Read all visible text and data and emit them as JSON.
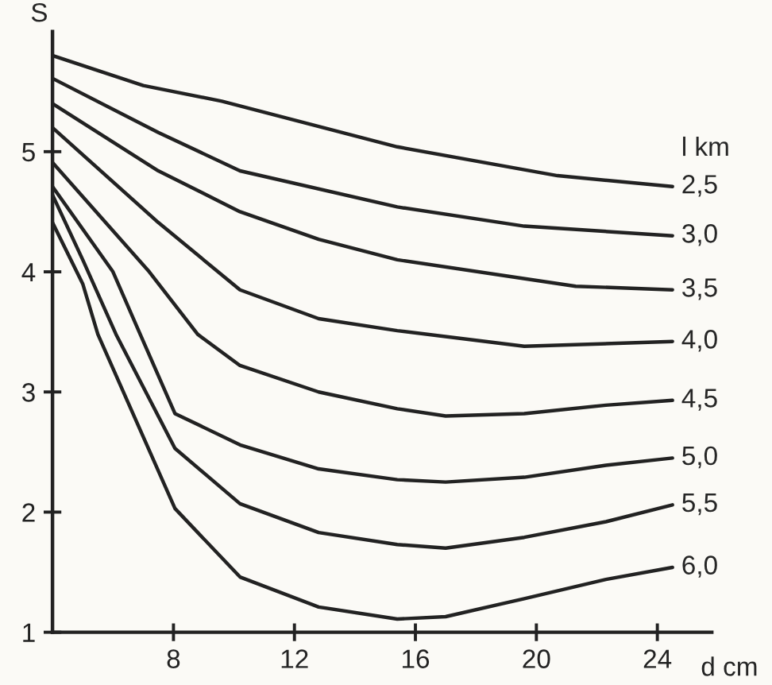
{
  "chart_data": {
    "type": "line",
    "xlabel": "d cm",
    "ylabel": "S",
    "legend_title": "l km",
    "xlim": [
      4,
      25.8
    ],
    "ylim": [
      1,
      6
    ],
    "xticks": [
      8,
      12,
      16,
      20,
      24
    ],
    "yticks": [
      1,
      2,
      3,
      4,
      5
    ],
    "grid": false,
    "legend": false,
    "marker": "none",
    "line_style": "solid",
    "series": [
      {
        "name": "2,5",
        "color": "#222222",
        "x": [
          4,
          7,
          9.6,
          15.4,
          20.7,
          24.5
        ],
        "values": [
          5.8,
          5.55,
          5.42,
          5.04,
          4.8,
          4.71
        ]
      },
      {
        "name": "3,0",
        "color": "#222222",
        "x": [
          4,
          7.5,
          10.2,
          15.4,
          19.6,
          24.5
        ],
        "values": [
          5.61,
          5.16,
          4.84,
          4.54,
          4.38,
          4.3
        ]
      },
      {
        "name": "3,5",
        "color": "#222222",
        "x": [
          4,
          7.5,
          10.2,
          12.8,
          15.4,
          21.3,
          24.5
        ],
        "values": [
          5.4,
          4.84,
          4.5,
          4.27,
          4.1,
          3.88,
          3.85
        ]
      },
      {
        "name": "4,0",
        "color": "#222222",
        "x": [
          4,
          7.5,
          10.2,
          12.8,
          15.4,
          19.6,
          24.5
        ],
        "values": [
          5.2,
          4.41,
          3.85,
          3.61,
          3.51,
          3.38,
          3.42
        ]
      },
      {
        "name": "4,5",
        "color": "#222222",
        "x": [
          4,
          7.2,
          8.8,
          10.2,
          12.8,
          15.4,
          17,
          19.6,
          22.3,
          24.5
        ],
        "values": [
          4.91,
          4.0,
          3.48,
          3.22,
          3.0,
          2.86,
          2.8,
          2.82,
          2.89,
          2.93
        ]
      },
      {
        "name": "5,0",
        "color": "#222222",
        "x": [
          4,
          6,
          6.9,
          8.05,
          10.2,
          12.8,
          15.4,
          17,
          19.6,
          22.3,
          24.5
        ],
        "values": [
          4.71,
          4.0,
          3.48,
          2.82,
          2.56,
          2.36,
          2.27,
          2.25,
          2.29,
          2.39,
          2.45
        ]
      },
      {
        "name": "5,5",
        "color": "#222222",
        "x": [
          4,
          5,
          6.1,
          8.05,
          10.2,
          12.8,
          15.4,
          17,
          19.6,
          22.3,
          24.5
        ],
        "values": [
          4.64,
          4.1,
          3.48,
          2.53,
          2.07,
          1.83,
          1.73,
          1.7,
          1.79,
          1.92,
          2.06
        ]
      },
      {
        "name": "6,0",
        "color": "#222222",
        "x": [
          4,
          5,
          5.5,
          8.05,
          10.2,
          12.8,
          15.4,
          17,
          19.6,
          22.3,
          24.5
        ],
        "values": [
          4.41,
          3.9,
          3.48,
          2.03,
          1.46,
          1.21,
          1.11,
          1.13,
          1.28,
          1.44,
          1.54
        ]
      }
    ]
  }
}
